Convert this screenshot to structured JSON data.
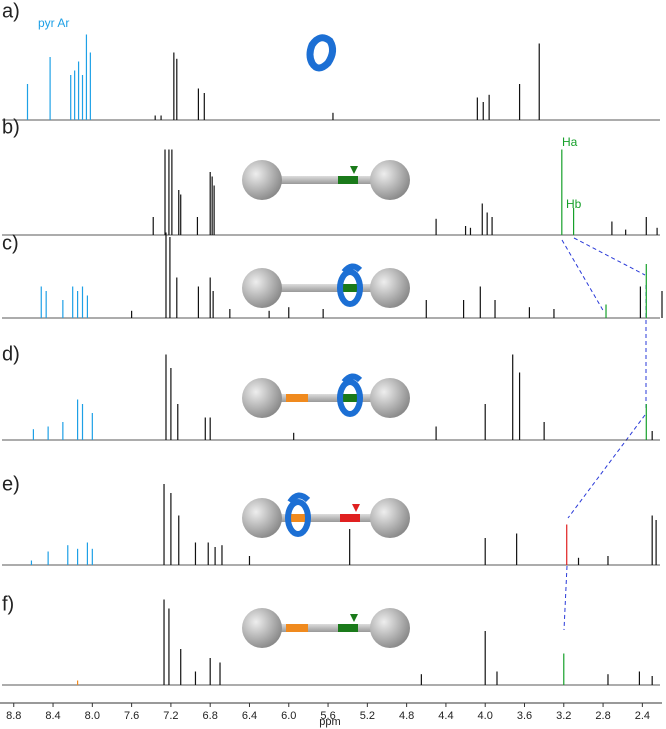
{
  "chart_data": {
    "type": "stick",
    "x_label": "ppm",
    "xlim": [
      8.94,
      2.2
    ],
    "xticks": [
      8.8,
      8.4,
      {
        "value": 8,
        "label": "8.0"
      },
      7.6,
      7.2,
      6.8,
      6.4,
      {
        "value": 6,
        "label": "6.0"
      },
      5.6,
      5.2,
      4.8,
      4.4,
      {
        "value": 4,
        "label": "4.0"
      },
      3.6,
      3.2,
      2.8,
      2.4
    ],
    "annotations": {
      "pyr": "pyr Ar",
      "ha": "Ha",
      "hb": "Hb"
    },
    "panels": [
      {
        "label": "a)",
        "series": [
          {
            "color": "#1ea0e6",
            "x": [
              8.66,
              8.43,
              8.22,
              8.18,
              8.14,
              8.1,
              8.06,
              8.02
            ],
            "values": [
              40,
              70,
              50,
              55,
              65,
              50,
              95,
              75
            ]
          },
          {
            "color": "#111111",
            "x": [
              7.36,
              7.3,
              7.17,
              7.14,
              6.92,
              6.86,
              5.55,
              4.08,
              4.02,
              3.96,
              3.65,
              3.45
            ],
            "values": [
              5,
              5,
              75,
              68,
              35,
              30,
              8,
              25,
              20,
              28,
              40,
              85
            ]
          }
        ]
      },
      {
        "label": "b)",
        "series": [
          {
            "color": "#111111",
            "x": [
              7.38,
              7.26,
              7.22,
              7.19,
              7.12,
              7.1,
              6.93,
              6.8,
              6.78,
              6.76,
              4.5,
              4.2,
              4.15,
              4.03,
              3.98,
              3.93,
              2.71,
              2.57,
              2.36,
              2.25
            ],
            "values": [
              20,
              95,
              95,
              95,
              50,
              45,
              20,
              70,
              65,
              55,
              18,
              10,
              8,
              35,
              25,
              20,
              15,
              6,
              20,
              8
            ]
          },
          {
            "color": "#16a02a",
            "x": [
              3.22,
              3.1
            ],
            "values": [
              95,
              30
            ]
          }
        ]
      },
      {
        "label": "c)",
        "series": [
          {
            "color": "#1ea0e6",
            "x": [
              8.52,
              8.47,
              8.3,
              8.2,
              8.15,
              8.1,
              8.05
            ],
            "values": [
              35,
              30,
              20,
              35,
              30,
              35,
              25
            ]
          },
          {
            "color": "#111111",
            "x": [
              7.6,
              7.25,
              7.21,
              7.14,
              6.92,
              6.8,
              6.77,
              6.6,
              6.2,
              6,
              5.65,
              4.6,
              4.22,
              4.05,
              3.9,
              3.55,
              3.3,
              2.42,
              2.2
            ],
            "values": [
              8,
              95,
              90,
              45,
              35,
              45,
              30,
              10,
              8,
              12,
              10,
              20,
              20,
              35,
              20,
              12,
              10,
              35,
              30
            ]
          },
          {
            "color": "#16a02a",
            "x": [
              2.77,
              2.36
            ],
            "values": [
              15,
              60
            ]
          }
        ]
      },
      {
        "label": "d)",
        "series": [
          {
            "color": "#1ea0e6",
            "x": [
              8.6,
              8.45,
              8.3,
              8.15,
              8.1,
              8
            ],
            "values": [
              12,
              15,
              20,
              45,
              40,
              30
            ]
          },
          {
            "color": "#111111",
            "x": [
              7.25,
              7.2,
              7.13,
              6.85,
              6.8,
              5.95,
              4.5,
              4,
              3.72,
              3.65,
              3.4,
              2.3
            ],
            "values": [
              95,
              80,
              40,
              25,
              25,
              8,
              15,
              40,
              95,
              75,
              20,
              10
            ]
          },
          {
            "color": "#16a02a",
            "x": [
              2.36
            ],
            "values": [
              40
            ]
          }
        ]
      },
      {
        "label": "e)",
        "series": [
          {
            "color": "#1ea0e6",
            "x": [
              8.62,
              8.45,
              8.25,
              8.15,
              8.05,
              8
            ],
            "values": [
              5,
              15,
              22,
              18,
              25,
              18
            ]
          },
          {
            "color": "#111111",
            "x": [
              7.27,
              7.2,
              7.12,
              6.95,
              6.82,
              6.75,
              6.68,
              6.4,
              5.38,
              4,
              3.68,
              3.05,
              2.75,
              2.3,
              2.26
            ],
            "values": [
              90,
              80,
              55,
              25,
              25,
              20,
              22,
              10,
              40,
              30,
              35,
              8,
              10,
              55,
              50
            ]
          },
          {
            "color": "#e02020",
            "x": [
              3.17
            ],
            "values": [
              45
            ]
          }
        ]
      },
      {
        "label": "f)",
        "series": [
          {
            "color": "#f08a1e",
            "x": [
              8.15
            ],
            "values": [
              5
            ]
          },
          {
            "color": "#111111",
            "x": [
              7.27,
              7.22,
              7.1,
              6.95,
              6.8,
              6.7,
              4.65,
              4,
              3.88,
              2.75,
              2.43,
              2.3
            ],
            "values": [
              95,
              85,
              40,
              15,
              30,
              25,
              12,
              60,
              15,
              12,
              15,
              10
            ]
          },
          {
            "color": "#16a02a",
            "x": [
              3.2
            ],
            "values": [
              35
            ]
          }
        ]
      }
    ]
  }
}
